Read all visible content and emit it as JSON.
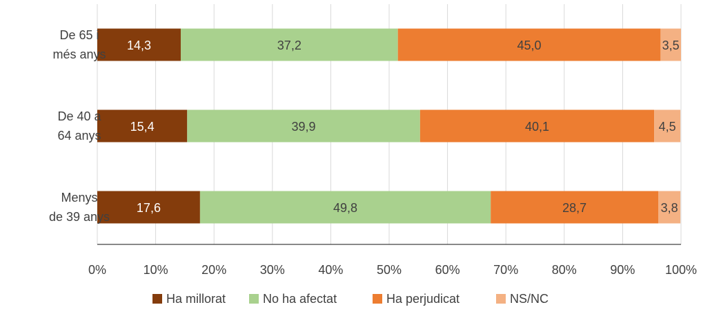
{
  "chart_data": {
    "type": "bar",
    "orientation": "horizontal",
    "stacked": true,
    "percent_scale": true,
    "categories": [
      "De 65 i més anys",
      "De 40 a 64 anys",
      "Menys de 39 anys"
    ],
    "category_label_lines": [
      [
        "De 65 i",
        "més anys"
      ],
      [
        "De 40 a",
        "64 anys"
      ],
      [
        "Menys",
        "de 39 anys"
      ]
    ],
    "series": [
      {
        "name": "Ha millorat",
        "color": "#843c0c",
        "label_color": "#ffffff",
        "values": [
          14.3,
          15.4,
          17.6
        ],
        "labels": [
          "14,3",
          "15,4",
          "17,6"
        ]
      },
      {
        "name": "No ha afectat",
        "color": "#a9d18e",
        "label_color": "#404040",
        "values": [
          37.2,
          39.9,
          49.8
        ],
        "labels": [
          "37,2",
          "39,9",
          "49,8"
        ]
      },
      {
        "name": "Ha perjudicat",
        "color": "#ed7d31",
        "label_color": "#404040",
        "values": [
          45.0,
          40.1,
          28.7
        ],
        "labels": [
          "45,0",
          "40,1",
          "28,7"
        ]
      },
      {
        "name": "NS/NC",
        "color": "#f4b183",
        "label_color": "#404040",
        "values": [
          3.5,
          4.5,
          3.8
        ],
        "labels": [
          "3,5",
          "4,5",
          "3,8"
        ]
      }
    ],
    "xlim": [
      0,
      100
    ],
    "x_ticks": [
      "0%",
      "10%",
      "20%",
      "30%",
      "40%",
      "50%",
      "60%",
      "70%",
      "80%",
      "90%",
      "100%"
    ],
    "xlabel": "",
    "ylabel": "",
    "title": "",
    "grid": "vertical",
    "legend_position": "bottom"
  }
}
